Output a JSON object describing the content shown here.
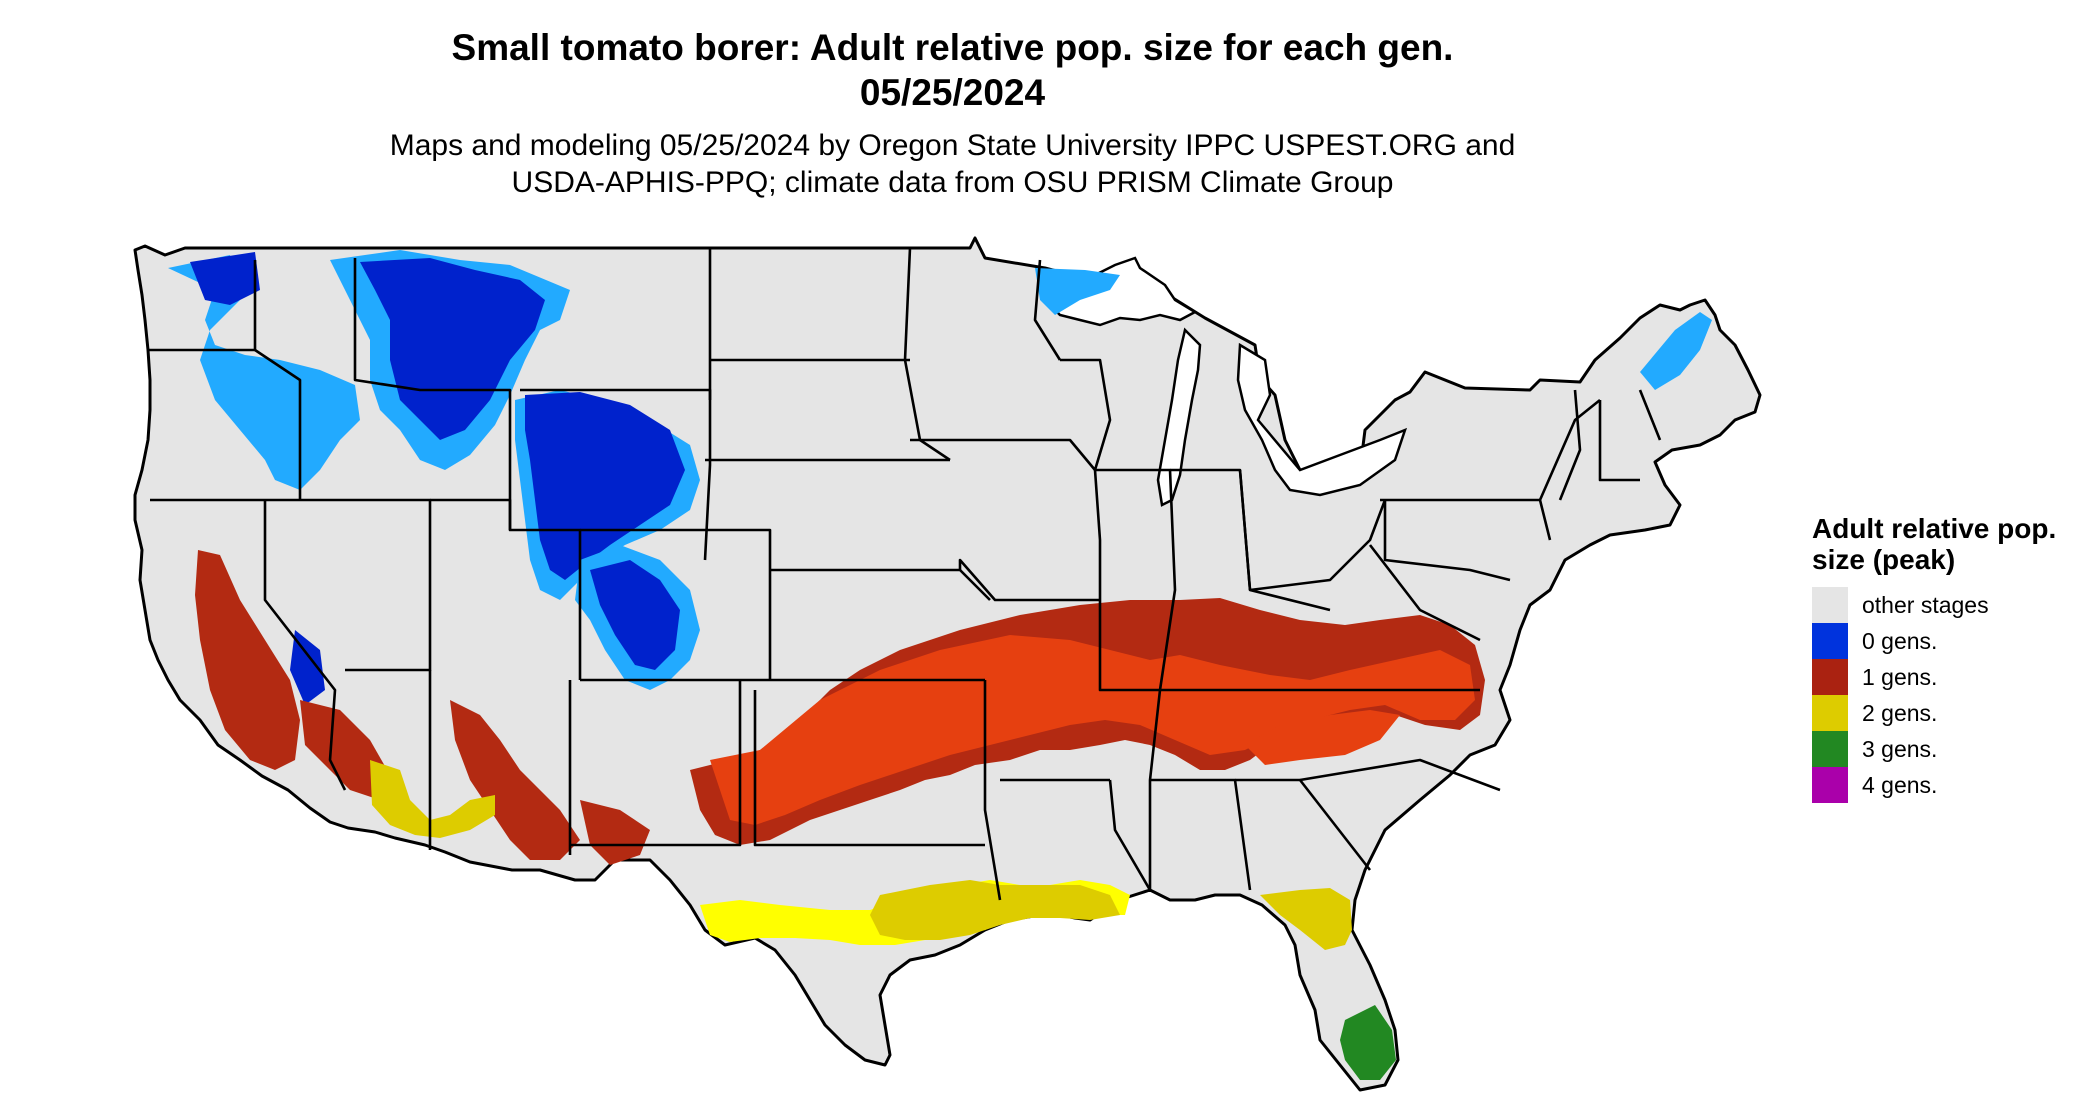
{
  "header": {
    "title_line1": "Small tomato borer: Adult relative pop. size for each gen.",
    "title_line2": "05/25/2024",
    "subtitle_line1": "Maps and modeling 05/25/2024 by Oregon State University IPPC USPEST.ORG and",
    "subtitle_line2": "USDA-APHIS-PPQ; climate data from OSU PRISM Climate Group"
  },
  "legend": {
    "title": "Adult relative pop. size (peak)",
    "items": [
      {
        "label": "other stages",
        "color": "#e5e5e5"
      },
      {
        "label": "0 gens.",
        "color": "#0033dd"
      },
      {
        "label": "1 gens.",
        "color": "#aa2211"
      },
      {
        "label": "2 gens.",
        "color": "#ddcc00"
      },
      {
        "label": "3 gens.",
        "color": "#228822"
      },
      {
        "label": "4 gens.",
        "color": "#aa00aa"
      }
    ]
  },
  "map": {
    "region": "contiguous-united-states",
    "colors": {
      "land": "#e5e5e5",
      "zero_gens_deep": "#0022cc",
      "zero_gens_light": "#22aaff",
      "one_gen": "#b32a12",
      "one_gen_bright": "#e64010",
      "two_gens": "#ddcc00",
      "two_gens_bright": "#ffff00",
      "three_gens": "#228822",
      "border": "#000000"
    }
  }
}
